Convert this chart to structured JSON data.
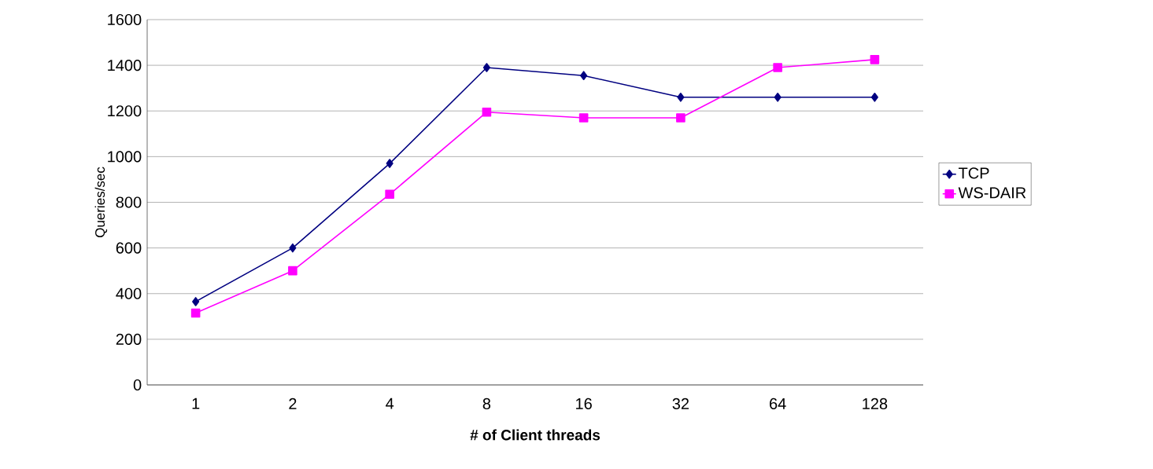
{
  "chart_data": {
    "type": "line",
    "xlabel": "# of Client threads",
    "ylabel": "Queries/sec",
    "categories": [
      "1",
      "2",
      "4",
      "8",
      "16",
      "32",
      "64",
      "128"
    ],
    "series": [
      {
        "name": "TCP",
        "color": "#000080",
        "marker": "diamond",
        "values": [
          365,
          600,
          970,
          1390,
          1355,
          1260,
          1260,
          1260
        ]
      },
      {
        "name": "WS-DAIR",
        "color": "#ff00ff",
        "marker": "square",
        "values": [
          315,
          500,
          835,
          1195,
          1170,
          1170,
          1390,
          1425
        ]
      }
    ],
    "ylim": [
      0,
      1600
    ],
    "yticks": [
      0,
      200,
      400,
      600,
      800,
      1000,
      1200,
      1400,
      1600
    ],
    "grid": "y",
    "legend": "right",
    "line_style": "solid"
  }
}
